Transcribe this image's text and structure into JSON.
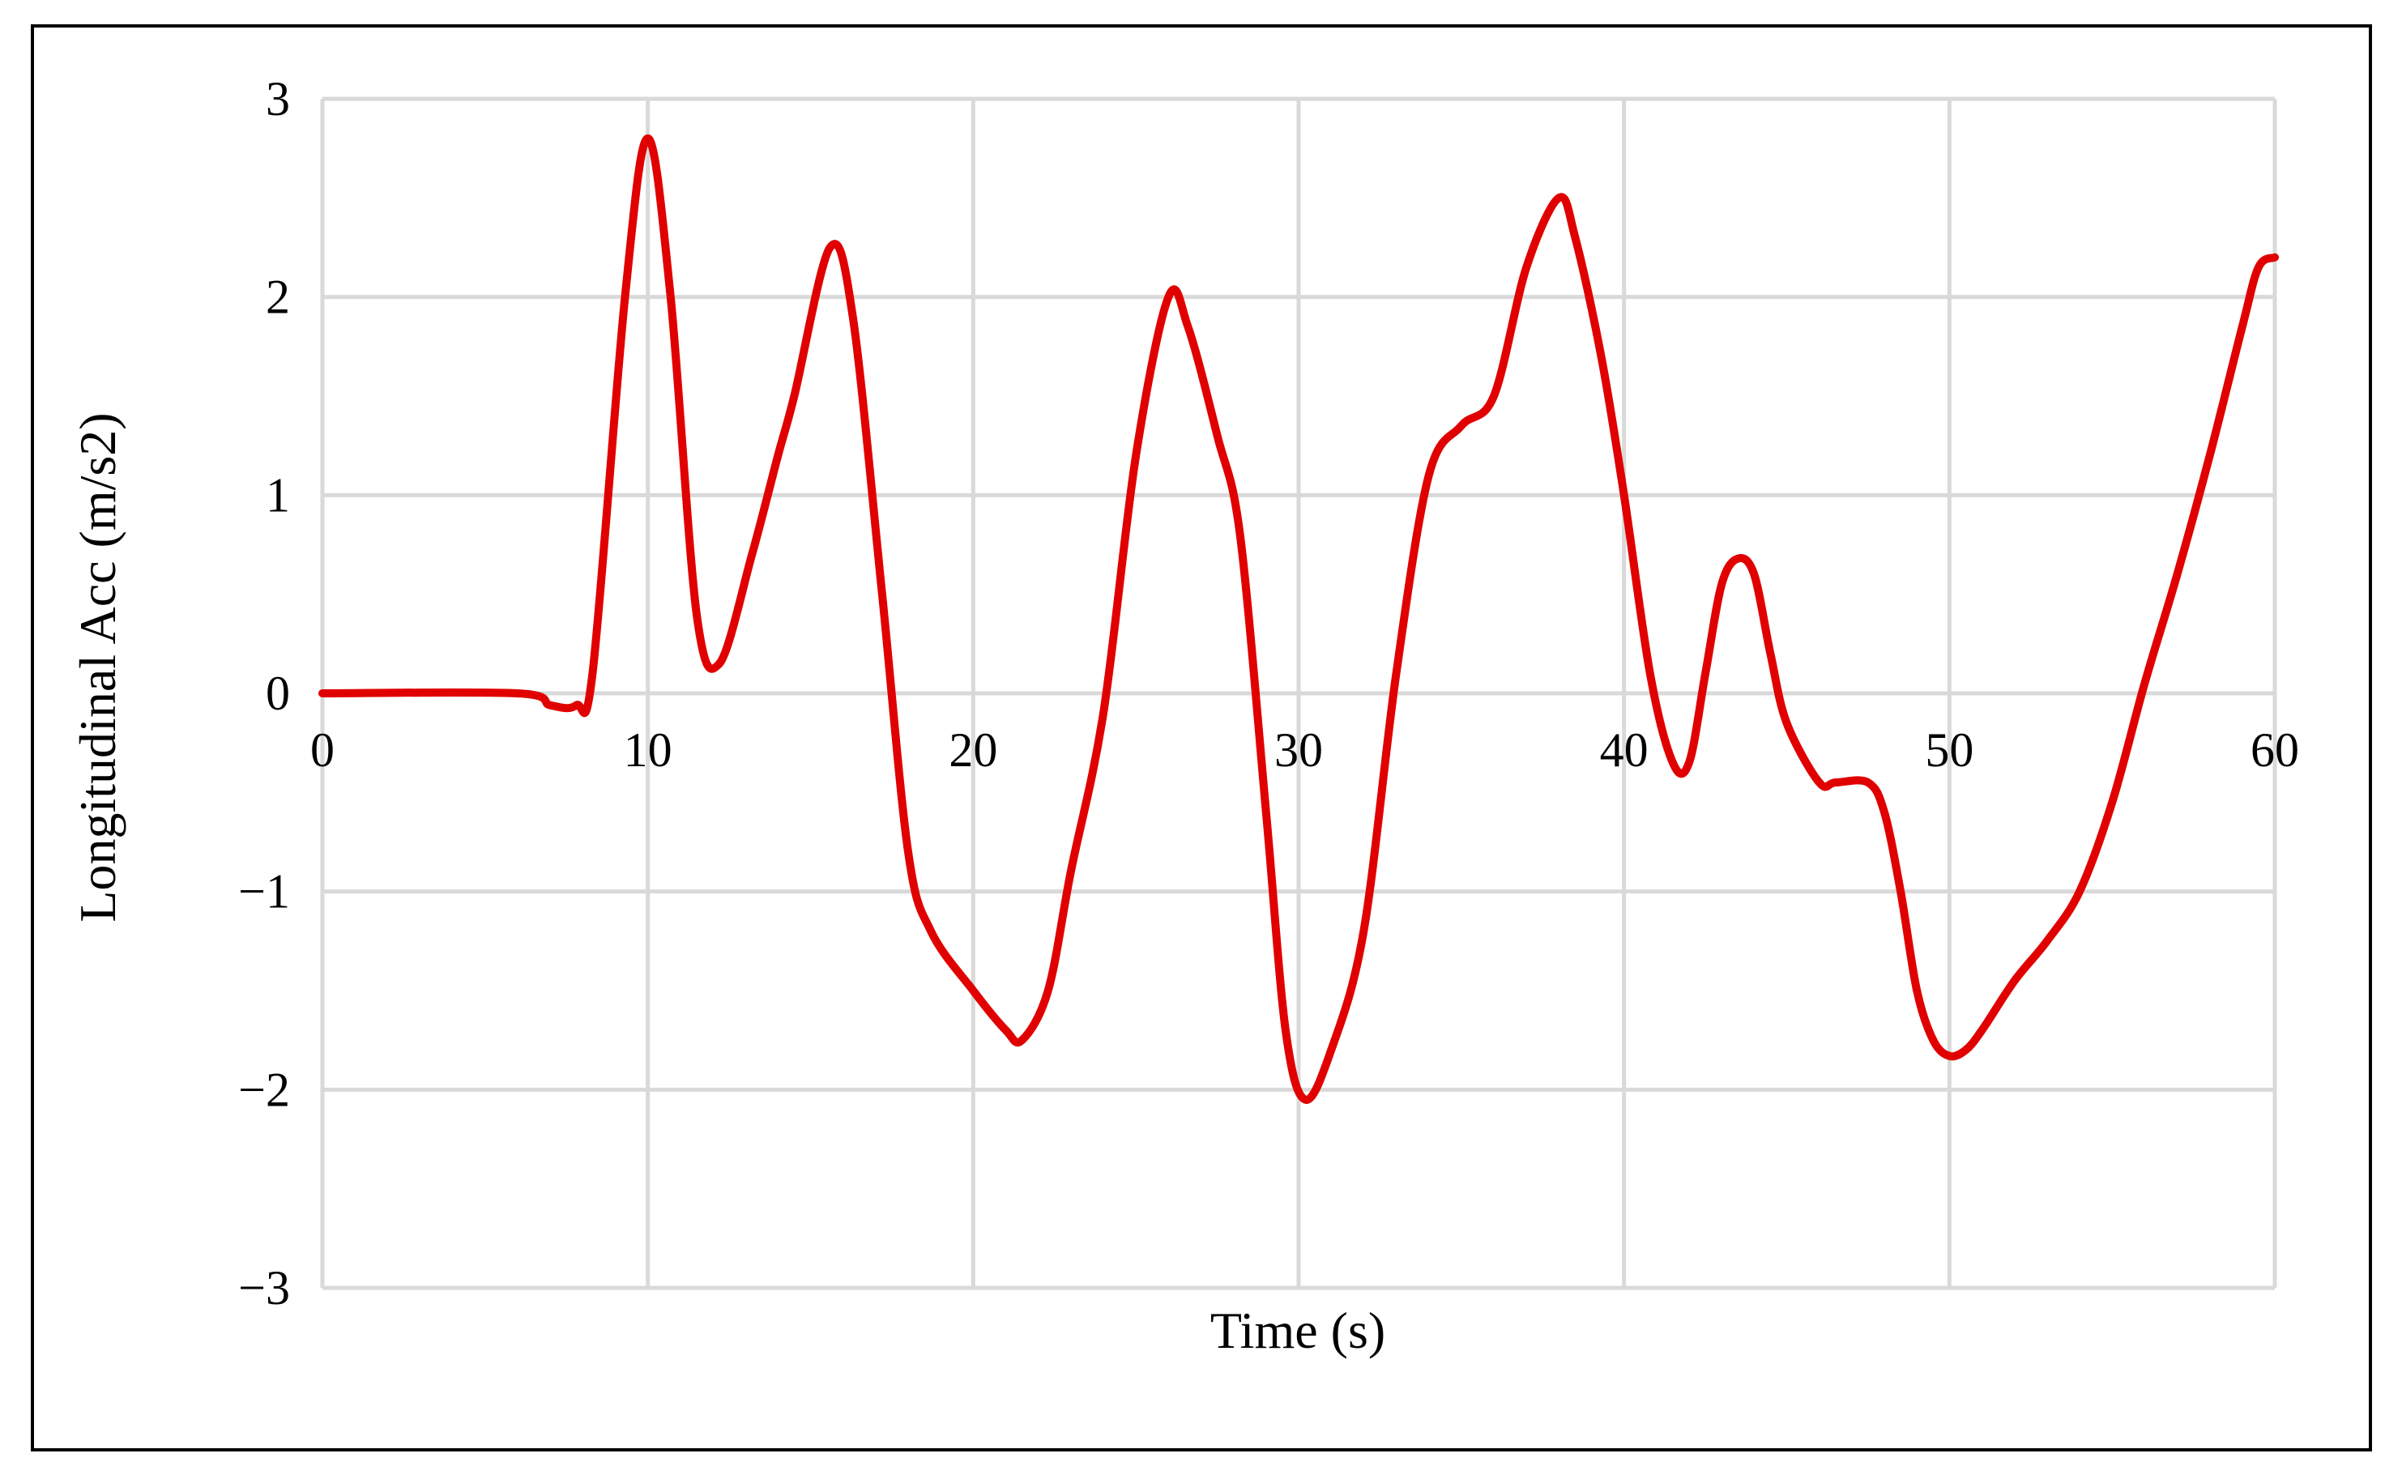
{
  "chart_data": {
    "type": "line",
    "xlabel": "Time (s)",
    "ylabel": "Longitudinal Acc (m/s2)",
    "xlim": [
      0,
      60
    ],
    "ylim": [
      -3,
      3
    ],
    "x_ticks": [
      0,
      10,
      20,
      30,
      40,
      50,
      60
    ],
    "y_ticks": [
      3,
      2,
      1,
      0,
      -1,
      -2,
      -3
    ],
    "x_tick_labels": [
      "0",
      "10",
      "20",
      "30",
      "40",
      "50",
      "60"
    ],
    "y_tick_labels": [
      "3",
      "2",
      "1",
      "0",
      "−1",
      "−2",
      "−3"
    ],
    "grid": true,
    "series": [
      {
        "color": "#e00000",
        "x": [
          0,
          6,
          7,
          7.8,
          8.3,
          9.3,
          10,
          10.7,
          11.5,
          12.2,
          13.2,
          14,
          14.5,
          15.6,
          16.3,
          17.2,
          18,
          18.7,
          20,
          21,
          21.5,
          22.3,
          23,
          24,
          25,
          26,
          26.6,
          27.5,
          28.2,
          29,
          29.6,
          30.2,
          31,
          32,
          33,
          34,
          35,
          36,
          37,
          38,
          38.5,
          39.3,
          40,
          40.8,
          41.5,
          42,
          42.5,
          43,
          43.5,
          44,
          44.5,
          45,
          46,
          46.5,
          47.5,
          48,
          48.5,
          49,
          49.5,
          50,
          50.5,
          51,
          52,
          53,
          54,
          55,
          56,
          57,
          58,
          59,
          59.5,
          60
        ],
        "y": [
          0,
          0,
          -0.06,
          -0.06,
          0.1,
          2.0,
          2.8,
          2.0,
          0.4,
          0.15,
          0.7,
          1.2,
          1.5,
          2.25,
          1.9,
          0.5,
          -0.8,
          -1.2,
          -1.5,
          -1.7,
          -1.75,
          -1.5,
          -0.9,
          -0.1,
          1.2,
          2.0,
          1.85,
          1.3,
          0.8,
          -0.6,
          -1.7,
          -2.05,
          -1.8,
          -1.2,
          0.1,
          1.1,
          1.35,
          1.5,
          2.15,
          2.5,
          2.3,
          1.7,
          1.0,
          0.1,
          -0.35,
          -0.35,
          0.1,
          0.55,
          0.68,
          0.6,
          0.2,
          -0.15,
          -0.45,
          -0.45,
          -0.45,
          -0.6,
          -1.0,
          -1.5,
          -1.75,
          -1.83,
          -1.8,
          -1.7,
          -1.45,
          -1.25,
          -1.0,
          -0.55,
          0.05,
          0.6,
          1.2,
          1.85,
          2.15,
          2.2
        ]
      }
    ]
  }
}
